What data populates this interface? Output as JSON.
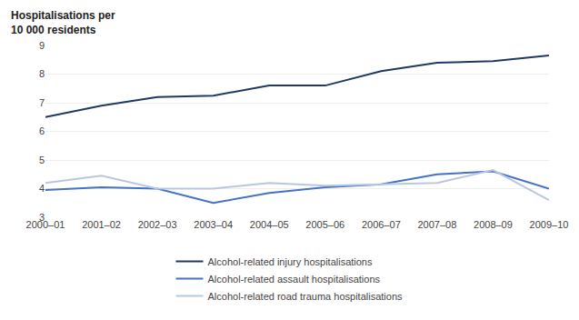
{
  "chart_data": {
    "type": "line",
    "ylabel": "Hospitalisations per\n10 000 residents",
    "categories": [
      "2000–01",
      "2001–02",
      "2002–03",
      "2003–04",
      "2004–05",
      "2005–06",
      "2006–07",
      "2007–08",
      "2008–09",
      "2009–10"
    ],
    "series": [
      {
        "name": "Alcohol-related injury hospitalisations",
        "color": "#1F3864",
        "values": [
          6.5,
          6.9,
          7.2,
          7.25,
          7.6,
          7.6,
          8.1,
          8.4,
          8.45,
          8.65
        ]
      },
      {
        "name": "Alcohol-related assault hospitalisations",
        "color": "#4472C4",
        "values": [
          3.95,
          4.05,
          4.0,
          3.5,
          3.85,
          4.05,
          4.15,
          4.5,
          4.6,
          4.0
        ]
      },
      {
        "name": "Alcohol-related road trauma hospitalisations",
        "color": "#B8C7E0",
        "values": [
          4.2,
          4.45,
          4.0,
          4.0,
          4.2,
          4.1,
          4.15,
          4.2,
          4.65,
          3.6
        ]
      }
    ],
    "ylim": [
      3,
      9
    ],
    "yticks": [
      3,
      4,
      5,
      6,
      7,
      8,
      9
    ],
    "grid": true,
    "legend": "bottom"
  }
}
